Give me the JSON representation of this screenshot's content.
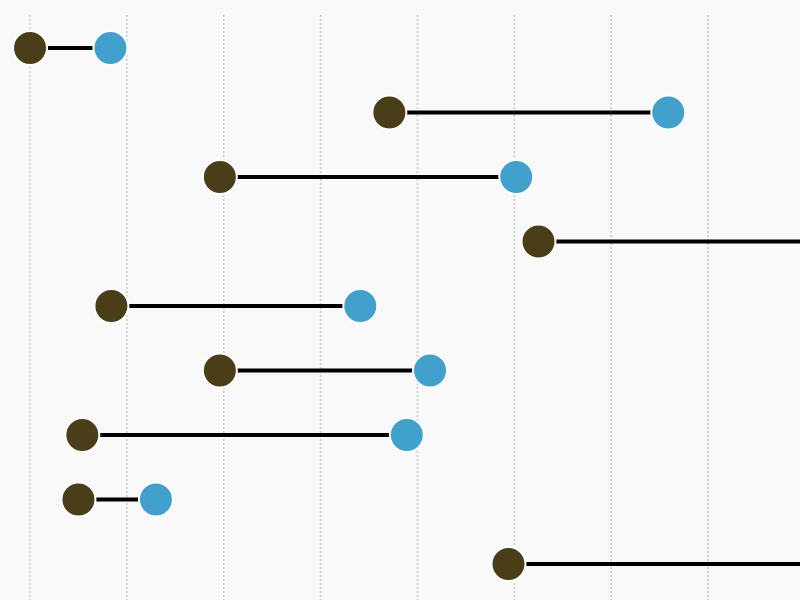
{
  "chart_data": {
    "type": "dumbbell",
    "title": "",
    "xlabel": "",
    "ylabel": "",
    "xlim": [
      -0.31,
      7.95
    ],
    "grid": {
      "vertical": true,
      "style": "dotted"
    },
    "x_gridlines": [
      0,
      1,
      2,
      3,
      4,
      5,
      6,
      7
    ],
    "rows": [
      {
        "start": 0.0,
        "end": 0.83
      },
      {
        "start": 3.71,
        "end": 6.59
      },
      {
        "start": 1.96,
        "end": 5.02
      },
      {
        "start": 5.25,
        "end": 8.3
      },
      {
        "start": 0.84,
        "end": 3.41
      },
      {
        "start": 1.96,
        "end": 4.13
      },
      {
        "start": 0.54,
        "end": 3.89
      },
      {
        "start": 0.5,
        "end": 1.3
      },
      {
        "start": 4.94,
        "end": 8.3
      }
    ],
    "colors": {
      "start": "#4a3e18",
      "end": "#42a0cc",
      "connector": "#000000",
      "grid": "#c8c8c8",
      "background": "#f9f9f9",
      "marker_edge": "#ffffff"
    }
  }
}
